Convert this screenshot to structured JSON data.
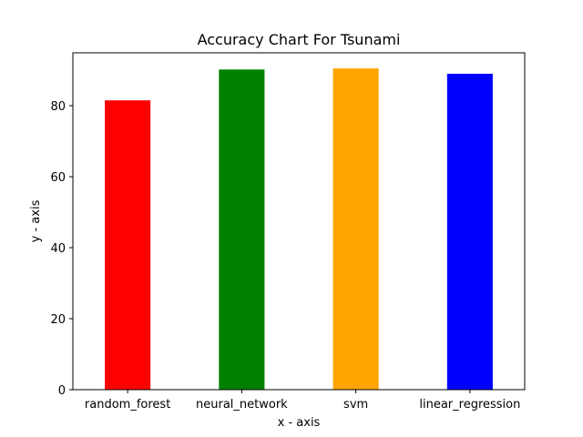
{
  "chart_data": {
    "type": "bar",
    "title": "Accuracy Chart For Tsunami",
    "xlabel": "x - axis",
    "ylabel": "y - axis",
    "categories": [
      "random_forest",
      "neural_network",
      "svm",
      "linear_regression"
    ],
    "values": [
      81.5,
      90.2,
      90.5,
      89.0
    ],
    "colors": [
      "#ff0000",
      "#008000",
      "#ffa500",
      "#0000ff"
    ],
    "ylim": [
      0,
      94.9
    ],
    "yticks": [
      0,
      20,
      40,
      60,
      80
    ],
    "grid": false,
    "legend": "none"
  }
}
